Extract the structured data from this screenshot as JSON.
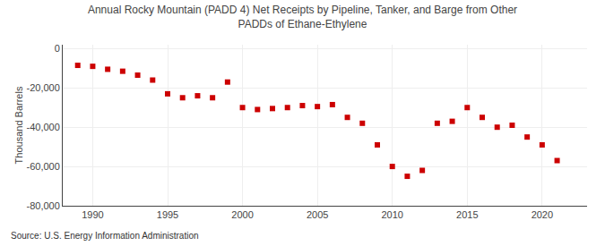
{
  "chart_data": {
    "type": "scatter",
    "title": "Annual Rocky Mountain (PADD 4) Net Receipts by Pipeline, Tanker, and Barge from Other\nPADDs of Ethane-Ethylene",
    "ylabel": "Thousand Barrels",
    "annotations": [
      "Source: U.S. Energy Information Administration"
    ],
    "x": [
      1989,
      1990,
      1991,
      1992,
      1993,
      1994,
      1995,
      1996,
      1997,
      1998,
      1999,
      2000,
      2001,
      2002,
      2003,
      2004,
      2005,
      2006,
      2007,
      2008,
      2009,
      2010,
      2011,
      2012,
      2013,
      2014,
      2015,
      2016,
      2017,
      2018,
      2019,
      2020,
      2021
    ],
    "values": [
      -8500,
      -9000,
      -10500,
      -11500,
      -13500,
      -16000,
      -23000,
      -25000,
      -24000,
      -25000,
      -17000,
      -30000,
      -31000,
      -30500,
      -30000,
      -29000,
      -29500,
      -28500,
      -35000,
      -38000,
      -49000,
      -60000,
      -65000,
      -62000,
      -38000,
      -37000,
      -30000,
      -35000,
      -40000,
      -39000,
      -45000,
      -49000,
      -57000
    ],
    "color": "#cc0000",
    "marker": "square",
    "xlim": [
      1988,
      2023
    ],
    "xticks": [
      1990,
      1995,
      2000,
      2005,
      2010,
      2015,
      2020
    ],
    "ylim": [
      -80000,
      2000
    ],
    "yticks": [
      0,
      {
        "value": -20000,
        "label": "-20,000"
      },
      {
        "value": -40000,
        "label": "-40,000"
      },
      {
        "value": -60000,
        "label": "-60,000"
      },
      {
        "value": -80000,
        "label": "-80,000"
      }
    ],
    "grid": true
  }
}
